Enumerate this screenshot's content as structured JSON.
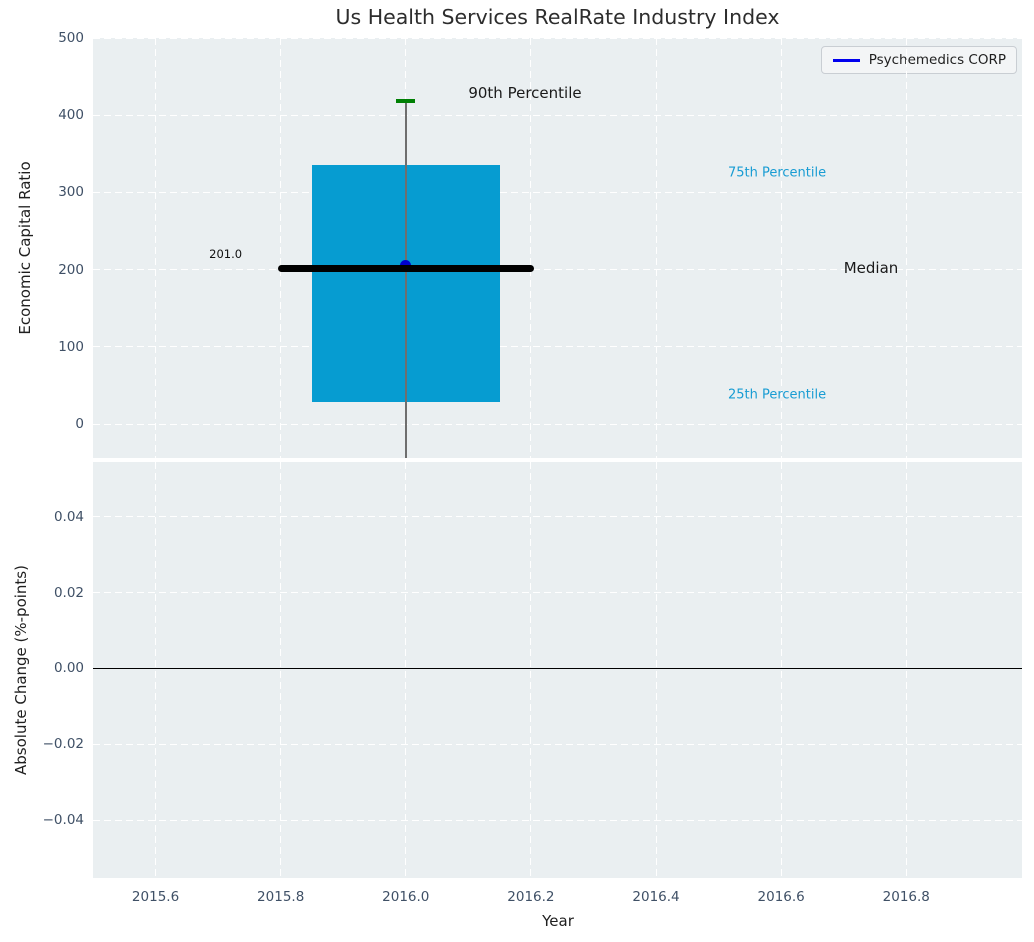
{
  "chart_data": {
    "type": "box",
    "title": "Us Health Services RealRate Industry Index",
    "xlabel": "Year",
    "xlim": [
      2015.5,
      2016.985
    ],
    "xticks": [
      {
        "v": 2015.6,
        "label": "2015.6"
      },
      {
        "v": 2015.8,
        "label": "2015.8"
      },
      {
        "v": 2016.0,
        "label": "2016.0"
      },
      {
        "v": 2016.2,
        "label": "2016.2"
      },
      {
        "v": 2016.4,
        "label": "2016.4"
      },
      {
        "v": 2016.6,
        "label": "2016.6"
      },
      {
        "v": 2016.8,
        "label": "2016.8"
      }
    ],
    "grid": {
      "on": true,
      "color": "#ffffff",
      "style": "dashed"
    },
    "axes_background": "#eaeff1",
    "tick_color": "#3f5066",
    "subplots": [
      {
        "ylabel": "Economic Capital Ratio",
        "ylim": [
          -44,
          500
        ],
        "yticks": [
          {
            "v": 0,
            "label": "0"
          },
          {
            "v": 100,
            "label": "100"
          },
          {
            "v": 200,
            "label": "200"
          },
          {
            "v": 300,
            "label": "300"
          },
          {
            "v": 400,
            "label": "400"
          },
          {
            "v": 500,
            "label": "500"
          }
        ],
        "boxplot": {
          "x_center": 2016.0,
          "box_left": 2015.85,
          "box_right": 2016.15,
          "p25": 28,
          "median": 201.0,
          "p75": 335,
          "p90": 418,
          "whisker_extends_below_axis": true,
          "box_color": "#069cd1",
          "median_color": "#000000",
          "median_x1": 2015.8,
          "median_x2": 2016.2,
          "cap_color": "#008004",
          "cap_half_width_years": 0.015,
          "whisker_color": "#6e6e6e"
        },
        "company_point": {
          "x": 2016.0,
          "y": 205,
          "color": "#0000cc",
          "radius_px": 5.5
        },
        "annotations": [
          {
            "id": "median-value-label",
            "text": "201.0",
            "x": 2015.712,
            "y": 220,
            "color": "#111111",
            "size": 11.5,
            "anchor": "middle"
          },
          {
            "id": "p90-label",
            "text": "90th Percentile",
            "x": 2016.1,
            "y": 429,
            "color": "#1a1a1a",
            "size": 15,
            "anchor": "start"
          },
          {
            "id": "p75-label",
            "text": "75th Percentile",
            "x": 2016.515,
            "y": 325,
            "color": "#189cd3",
            "size": 13,
            "anchor": "start"
          },
          {
            "id": "median-label",
            "text": "Median",
            "x": 2016.7,
            "y": 202,
            "color": "#1a1a1a",
            "size": 15,
            "anchor": "start"
          },
          {
            "id": "p25-label",
            "text": "25th Percentile",
            "x": 2016.515,
            "y": 38,
            "color": "#189cd3",
            "size": 13,
            "anchor": "start"
          }
        ],
        "legend": {
          "label": "Psychemedics CORP",
          "line_color": "#0000ee",
          "position": "upper right"
        }
      },
      {
        "ylabel": "Absolute Change (%-points)",
        "ylim": [
          -0.0553,
          0.0545
        ],
        "yticks": [
          {
            "v": 0.04,
            "label": "0.04"
          },
          {
            "v": 0.02,
            "label": "0.02"
          },
          {
            "v": 0.0,
            "label": "0.00"
          },
          {
            "v": -0.02,
            "label": "−0.02"
          },
          {
            "v": -0.04,
            "label": "−0.04"
          }
        ],
        "zero_line": {
          "y": 0.0,
          "color": "#000000",
          "thickness_px": 1.5
        }
      }
    ]
  }
}
